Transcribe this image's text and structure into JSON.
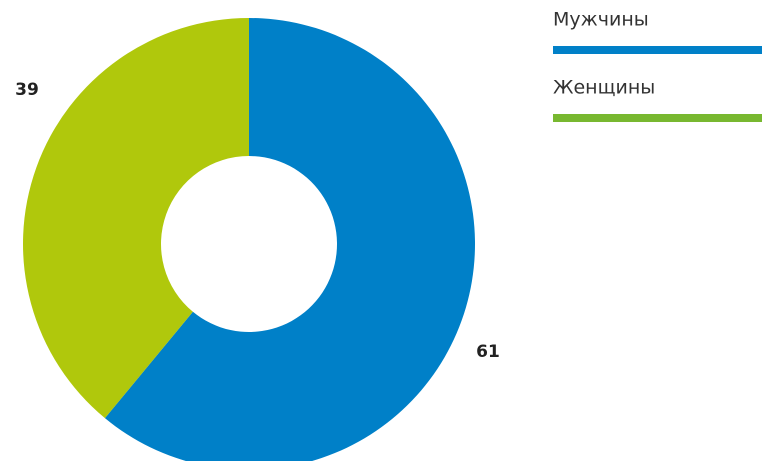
{
  "chart_data": {
    "type": "pie",
    "categories": [
      "Мужчины",
      "Женщины"
    ],
    "values": [
      61,
      39
    ],
    "colors": [
      "#0080c8",
      "#b0c80c"
    ],
    "legend_colors": [
      "#0080c8",
      "#78b830"
    ]
  }
}
